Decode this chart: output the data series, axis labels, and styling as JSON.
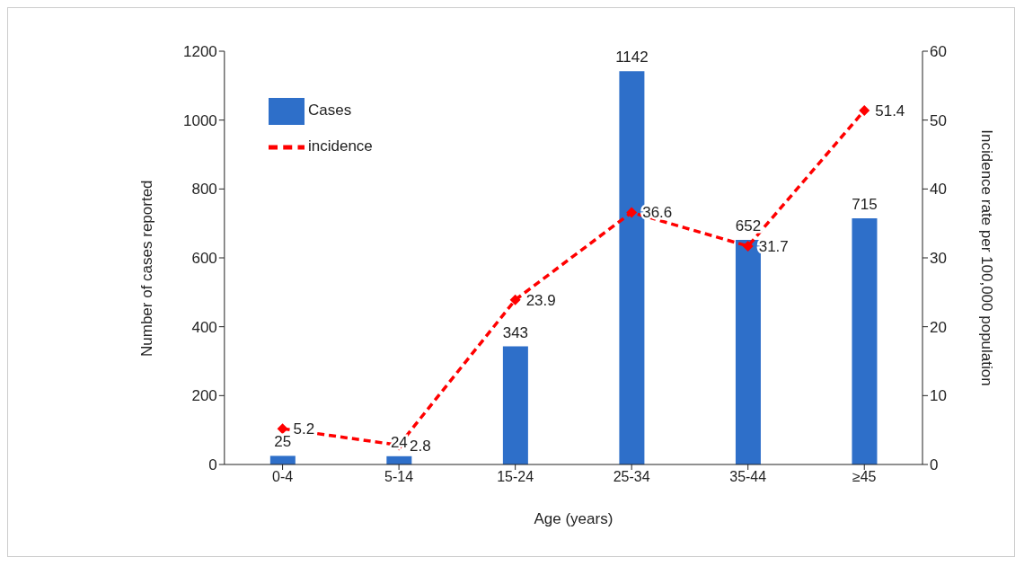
{
  "chart_data": {
    "type": "bar",
    "xlabel": "Age (years)",
    "ylabel": "Number of cases reported",
    "y2label": "Incidence rate per 100,000 population",
    "categories": [
      "0-4",
      "5-14",
      "15-24",
      "25-34",
      "35-44",
      "≥45"
    ],
    "series": [
      {
        "name": "Cases",
        "color": "#2e6fc9",
        "values": [
          25,
          24,
          343,
          1142,
          652,
          715
        ]
      },
      {
        "name": "incidence",
        "type": "line",
        "axis": "y2",
        "color": "#ff0000",
        "values": [
          5.2,
          2.8,
          23.9,
          36.6,
          31.7,
          51.4
        ],
        "marker": "diamond",
        "line_style": "dashed"
      }
    ],
    "ylim": [
      0,
      1200
    ],
    "yticks": [
      0,
      200,
      400,
      600,
      800,
      1000,
      1200
    ],
    "y2lim": [
      0,
      60
    ],
    "y2ticks": [
      0,
      10,
      20,
      30,
      40,
      50,
      60
    ],
    "data_labels": true,
    "grid": false,
    "legend": "top left"
  }
}
